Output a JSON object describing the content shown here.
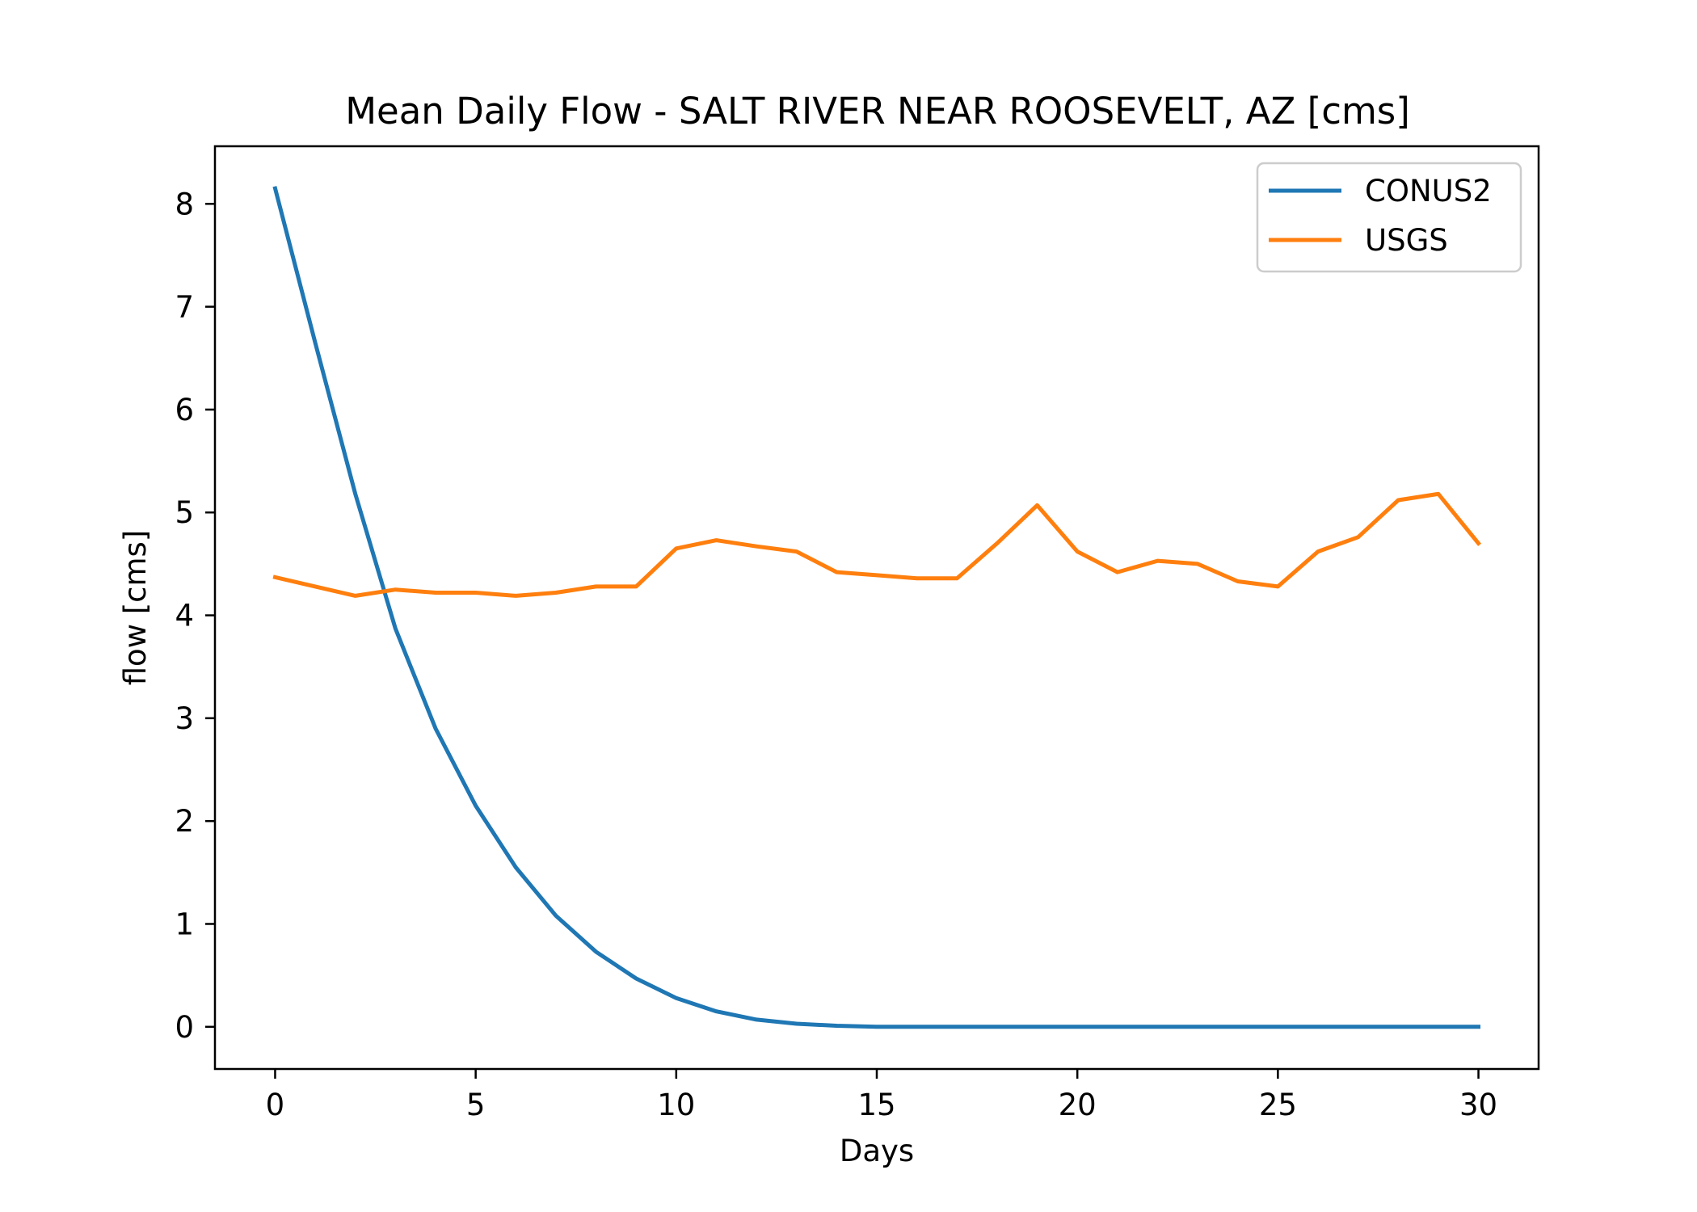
{
  "chart_data": {
    "type": "line",
    "title": "Mean Daily Flow - SALT RIVER NEAR ROOSEVELT, AZ [cms]",
    "xlabel": "Days",
    "ylabel": "flow [cms]",
    "xlim": [
      -1.5,
      31.5
    ],
    "ylim": [
      -0.41,
      8.56
    ],
    "xticks": [
      0,
      5,
      10,
      15,
      20,
      25,
      30
    ],
    "yticks": [
      0,
      1,
      2,
      3,
      4,
      5,
      6,
      7,
      8
    ],
    "grid": false,
    "legend": "top-right",
    "x": [
      0,
      1,
      2,
      3,
      4,
      5,
      6,
      7,
      8,
      9,
      10,
      11,
      12,
      13,
      14,
      15,
      16,
      17,
      18,
      19,
      20,
      21,
      22,
      23,
      24,
      25,
      26,
      27,
      28,
      29,
      30
    ],
    "series": [
      {
        "name": "CONUS2",
        "color": "#1f77b4",
        "values": [
          8.15,
          6.65,
          5.18,
          3.87,
          2.9,
          2.15,
          1.55,
          1.08,
          0.73,
          0.47,
          0.28,
          0.15,
          0.07,
          0.03,
          0.01,
          0.0,
          0.0,
          0.0,
          0.0,
          0.0,
          0.0,
          0.0,
          0.0,
          0.0,
          0.0,
          0.0,
          0.0,
          0.0,
          0.0,
          0.0,
          0.0
        ]
      },
      {
        "name": "USGS",
        "color": "#ff7f0e",
        "values": [
          4.37,
          4.28,
          4.19,
          4.25,
          4.22,
          4.22,
          4.19,
          4.22,
          4.28,
          4.28,
          4.65,
          4.73,
          4.67,
          4.62,
          4.42,
          4.39,
          4.36,
          4.36,
          4.7,
          5.07,
          4.62,
          4.42,
          4.53,
          4.5,
          4.33,
          4.28,
          4.62,
          4.76,
          5.12,
          5.18,
          4.7
        ]
      }
    ]
  }
}
